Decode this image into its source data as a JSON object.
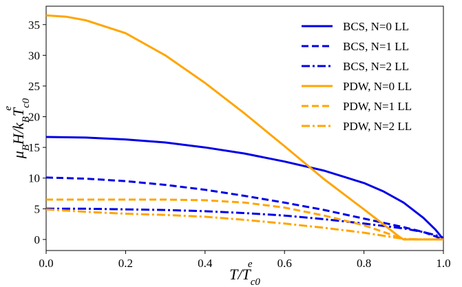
{
  "chart_data": {
    "type": "line",
    "title": "",
    "xlabel": {
      "main": "T/T",
      "sub": "c0",
      "sup": "e"
    },
    "ylabel": {
      "main": "μ",
      "sub1": "B",
      "mid": "H/k",
      "sub2": "B",
      "t": "T",
      "sub3": "c0",
      "sup": "e"
    },
    "xlim": [
      0,
      1.0
    ],
    "ylim": [
      -1.8,
      38
    ],
    "xticks": [
      "0.0",
      "0.2",
      "0.4",
      "0.6",
      "0.8",
      "1.0"
    ],
    "xtick_values": [
      0,
      0.2,
      0.4,
      0.6,
      0.8,
      1.0
    ],
    "yticks": [
      "0",
      "5",
      "10",
      "15",
      "20",
      "25",
      "30",
      "35"
    ],
    "ytick_values": [
      0,
      5,
      10,
      15,
      20,
      25,
      30,
      35
    ],
    "grid": false,
    "legend_position": "top-right",
    "series": [
      {
        "name": "BCS, N=0 LL",
        "color": "#0000e6",
        "style": "solid",
        "x": [
          0,
          0.1,
          0.2,
          0.3,
          0.4,
          0.5,
          0.6,
          0.7,
          0.8,
          0.85,
          0.9,
          0.95,
          0.98,
          1.0
        ],
        "y": [
          16.7,
          16.6,
          16.3,
          15.8,
          15.0,
          14.0,
          12.7,
          11.2,
          9.2,
          7.8,
          6.0,
          3.5,
          1.6,
          0
        ]
      },
      {
        "name": "BCS, N=1 LL",
        "color": "#0000e6",
        "style": "dashed",
        "x": [
          0,
          0.1,
          0.2,
          0.3,
          0.4,
          0.5,
          0.6,
          0.7,
          0.8,
          0.9,
          0.95,
          0.98,
          1.0
        ],
        "y": [
          10.1,
          9.9,
          9.5,
          8.9,
          8.1,
          7.1,
          6.0,
          4.8,
          3.4,
          2.0,
          1.2,
          0.5,
          0
        ]
      },
      {
        "name": "BCS, N=2 LL",
        "color": "#0000e6",
        "style": "dashdot",
        "x": [
          0,
          0.1,
          0.2,
          0.3,
          0.4,
          0.5,
          0.6,
          0.7,
          0.8,
          0.9,
          0.95,
          0.98,
          1.0
        ],
        "y": [
          5.0,
          5.0,
          4.9,
          4.8,
          4.6,
          4.3,
          3.9,
          3.3,
          2.6,
          1.8,
          1.2,
          0.7,
          0.3
        ]
      },
      {
        "name": "PDW, N=0 LL",
        "color": "#ffa500",
        "style": "solid",
        "x": [
          0,
          0.05,
          0.1,
          0.2,
          0.3,
          0.4,
          0.5,
          0.6,
          0.7,
          0.8,
          0.85,
          0.89,
          0.9,
          0.92,
          0.95,
          1.0
        ],
        "y": [
          36.5,
          36.3,
          35.7,
          33.6,
          30.0,
          25.5,
          20.5,
          15.2,
          9.8,
          4.9,
          2.4,
          0.4,
          0,
          0,
          0,
          0
        ]
      },
      {
        "name": "PDW, N=1 LL",
        "color": "#ffa500",
        "style": "dashed",
        "x": [
          0,
          0.1,
          0.2,
          0.3,
          0.4,
          0.5,
          0.6,
          0.7,
          0.8,
          0.85,
          0.88,
          0.9,
          0.95,
          1.0
        ],
        "y": [
          6.5,
          6.5,
          6.5,
          6.5,
          6.4,
          6.0,
          5.2,
          3.9,
          2.3,
          1.2,
          0.5,
          0,
          0,
          0
        ]
      },
      {
        "name": "PDW, N=2 LL",
        "color": "#ffa500",
        "style": "dashdot",
        "x": [
          0,
          0.1,
          0.2,
          0.3,
          0.4,
          0.5,
          0.6,
          0.7,
          0.8,
          0.85,
          0.9,
          0.95,
          1.0
        ],
        "y": [
          4.9,
          4.5,
          4.2,
          4.0,
          3.7,
          3.2,
          2.6,
          1.9,
          1.1,
          0.6,
          0.1,
          0,
          0
        ]
      }
    ]
  }
}
